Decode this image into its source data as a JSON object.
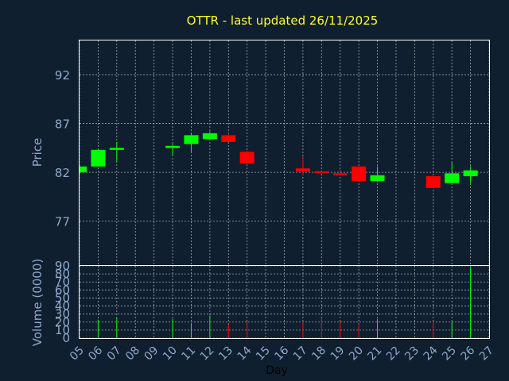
{
  "chart_data": {
    "type": "candlestick",
    "title": "OTTR - last updated 26/11/2025",
    "xlabel": "Day",
    "x_ticks": [
      "05",
      "06",
      "07",
      "08",
      "09",
      "10",
      "11",
      "12",
      "13",
      "14",
      "15",
      "16",
      "17",
      "18",
      "19",
      "20",
      "21",
      "22",
      "23",
      "24",
      "25",
      "26",
      "27"
    ],
    "price_panel": {
      "ylabel": "Price",
      "ylim": [
        72.5,
        95.5
      ],
      "y_ticks": [
        77,
        82,
        87,
        92
      ],
      "grid": true,
      "candles": [
        {
          "day": "05",
          "open": 82.0,
          "close": 82.6,
          "high": 82.7,
          "low": 81.9
        },
        {
          "day": "06",
          "open": 82.6,
          "close": 84.3,
          "high": 84.4,
          "low": 82.6
        },
        {
          "day": "07",
          "open": 84.3,
          "close": 84.5,
          "high": 85.1,
          "low": 83.1
        },
        {
          "day": "10",
          "open": 84.5,
          "close": 84.7,
          "high": 84.9,
          "low": 83.8
        },
        {
          "day": "11",
          "open": 84.9,
          "close": 85.8,
          "high": 86.0,
          "low": 84.1
        },
        {
          "day": "12",
          "open": 85.4,
          "close": 86.0,
          "high": 86.2,
          "low": 85.4
        },
        {
          "day": "13",
          "open": 85.8,
          "close": 85.1,
          "high": 86.0,
          "low": 85.1
        },
        {
          "day": "14",
          "open": 84.1,
          "close": 82.9,
          "high": 84.2,
          "low": 82.9
        },
        {
          "day": "17",
          "open": 82.4,
          "close": 82.1,
          "high": 83.6,
          "low": 81.7
        },
        {
          "day": "18",
          "open": 82.1,
          "close": 82.0,
          "high": 82.2,
          "low": 81.9
        },
        {
          "day": "19",
          "open": 81.9,
          "close": 81.8,
          "high": 82.3,
          "low": 81.7
        },
        {
          "day": "20",
          "open": 82.6,
          "close": 81.1,
          "high": 82.6,
          "low": 81.1
        },
        {
          "day": "21",
          "open": 81.1,
          "close": 81.7,
          "high": 82.6,
          "low": 81.0
        },
        {
          "day": "24",
          "open": 81.6,
          "close": 80.4,
          "high": 81.6,
          "low": 80.4
        },
        {
          "day": "25",
          "open": 80.9,
          "close": 81.9,
          "high": 83.0,
          "low": 80.9
        },
        {
          "day": "26",
          "open": 81.6,
          "close": 82.2,
          "high": 82.6,
          "low": 80.9
        }
      ]
    },
    "volume_panel": {
      "ylabel": "Volume (0000)",
      "ylim": [
        0,
        90
      ],
      "y_ticks": [
        0,
        10,
        20,
        30,
        40,
        50,
        60,
        70,
        80,
        90
      ],
      "volumes": [
        {
          "day": "06",
          "value": 23,
          "up": true
        },
        {
          "day": "07",
          "value": 25,
          "up": true
        },
        {
          "day": "10",
          "value": 24,
          "up": true
        },
        {
          "day": "11",
          "value": 18,
          "up": true
        },
        {
          "day": "12",
          "value": 28,
          "up": true
        },
        {
          "day": "13",
          "value": 17,
          "up": false
        },
        {
          "day": "14",
          "value": 21,
          "up": false
        },
        {
          "day": "17",
          "value": 21,
          "up": false
        },
        {
          "day": "18",
          "value": 25,
          "up": false
        },
        {
          "day": "19",
          "value": 21,
          "up": false
        },
        {
          "day": "20",
          "value": 18,
          "up": false
        },
        {
          "day": "21",
          "value": 24,
          "up": true
        },
        {
          "day": "24",
          "value": 21,
          "up": false
        },
        {
          "day": "25",
          "value": 21,
          "up": true
        },
        {
          "day": "26",
          "value": 88,
          "up": true
        }
      ]
    },
    "colors": {
      "background": "#0f1f30",
      "frame": "#ffffff",
      "grid": "#d0d0d0",
      "title": "#ffff22",
      "axis_text": "#8fa8c8",
      "up": "#00ff00",
      "down": "#ff0000",
      "xlabel": "#000000"
    }
  }
}
